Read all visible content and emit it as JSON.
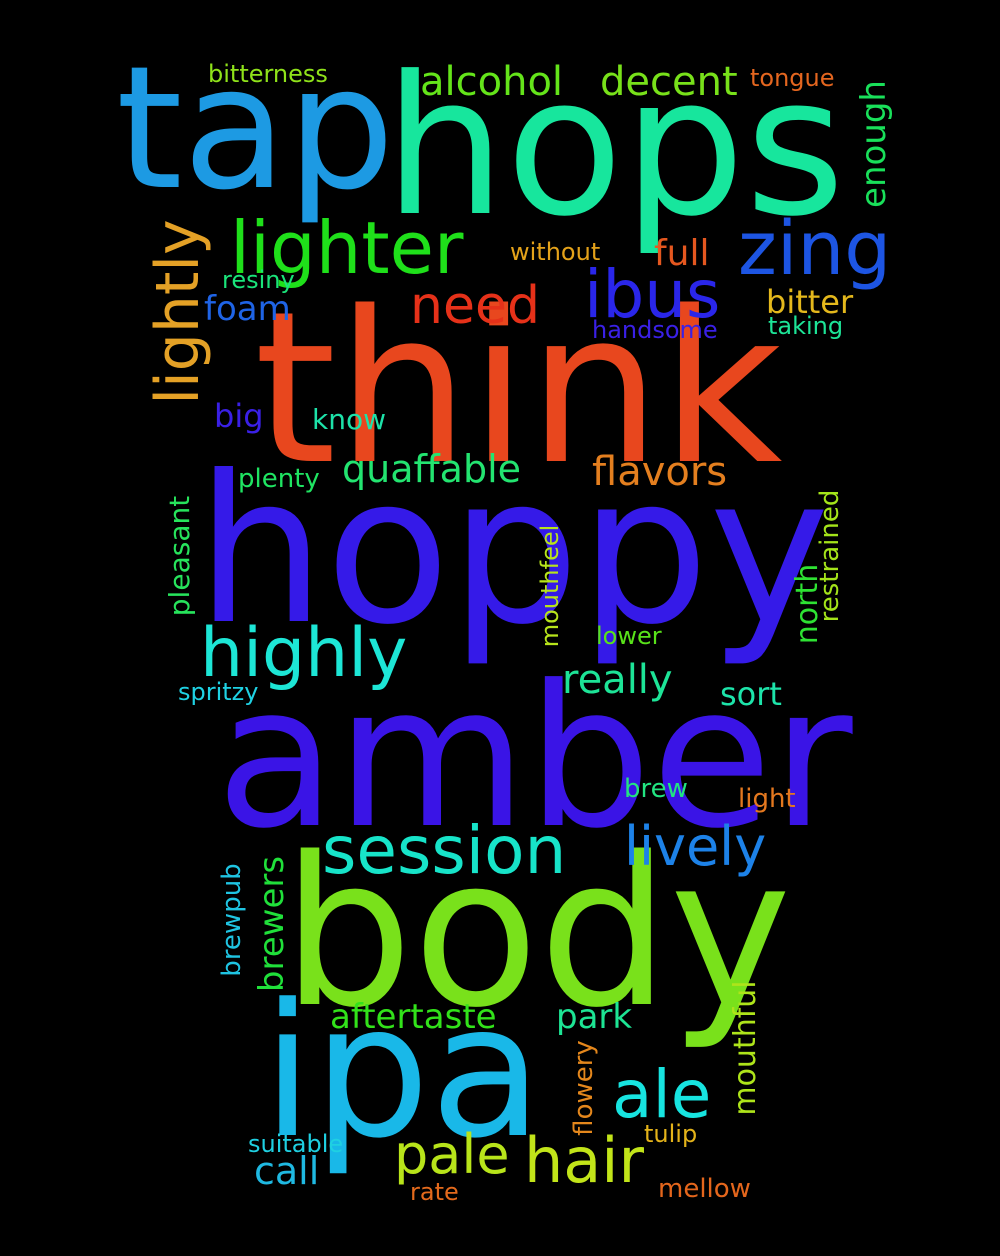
{
  "background": "#000000",
  "words": [
    {
      "text": "think",
      "color": "#e8471e"
    },
    {
      "text": "hoppy",
      "color": "#351ae8"
    },
    {
      "text": "amber",
      "color": "#3a14e6"
    },
    {
      "text": "body",
      "color": "#79e11b"
    },
    {
      "text": "hops",
      "color": "#17e69d"
    },
    {
      "text": "tap",
      "color": "#1d9ae3"
    },
    {
      "text": "ipa",
      "color": "#19b8e8"
    },
    {
      "text": "lighter",
      "color": "#1fe01a"
    },
    {
      "text": "lightly",
      "color": "#e4a126"
    },
    {
      "text": "zing",
      "color": "#1d55e3"
    },
    {
      "text": "ibus",
      "color": "#2a26ea"
    },
    {
      "text": "highly",
      "color": "#1de6d6"
    },
    {
      "text": "session",
      "color": "#17e4c9"
    },
    {
      "text": "ale",
      "color": "#17e4e0"
    },
    {
      "text": "hair",
      "color": "#c2e419"
    },
    {
      "text": "pale",
      "color": "#b8e41a"
    },
    {
      "text": "need",
      "color": "#e63119"
    },
    {
      "text": "lively",
      "color": "#1d82e8"
    },
    {
      "text": "alcohol",
      "color": "#64e41a"
    },
    {
      "text": "decent",
      "color": "#78e11a"
    },
    {
      "text": "quaffable",
      "color": "#23e470"
    },
    {
      "text": "flavors",
      "color": "#e47f1f"
    },
    {
      "text": "really",
      "color": "#1de497"
    },
    {
      "text": "enough",
      "color": "#19e05a"
    },
    {
      "text": "full",
      "color": "#e4571f"
    },
    {
      "text": "foam",
      "color": "#1f64e6"
    },
    {
      "text": "bitter",
      "color": "#e4b81c"
    },
    {
      "text": "aftertaste",
      "color": "#32e21a"
    },
    {
      "text": "park",
      "color": "#1de494"
    },
    {
      "text": "call",
      "color": "#1fb9e2"
    },
    {
      "text": "mouthful",
      "color": "#aee41a"
    },
    {
      "text": "brewers",
      "color": "#20e03a"
    },
    {
      "text": "north",
      "color": "#2ee233"
    },
    {
      "text": "big",
      "color": "#3a20e6"
    },
    {
      "text": "know",
      "color": "#1de2a9"
    },
    {
      "text": "sort",
      "color": "#1de4aa"
    },
    {
      "text": "plenty",
      "color": "#1fe462"
    },
    {
      "text": "pleasant",
      "color": "#27e45c"
    },
    {
      "text": "restrained",
      "color": "#a4e41a"
    },
    {
      "text": "mouthfeel",
      "color": "#b7e41b"
    },
    {
      "text": "bitterness",
      "color": "#8fe21a"
    },
    {
      "text": "tongue",
      "color": "#e4661f"
    },
    {
      "text": "without",
      "color": "#e4a21a"
    },
    {
      "text": "resiny",
      "color": "#1ae47a"
    },
    {
      "text": "handsome",
      "color": "#3a20e6"
    },
    {
      "text": "taking",
      "color": "#1de497"
    },
    {
      "text": "lower",
      "color": "#59e21a"
    },
    {
      "text": "spritzy",
      "color": "#1fd2e4"
    },
    {
      "text": "brew",
      "color": "#22e481"
    },
    {
      "text": "light",
      "color": "#e4781f"
    },
    {
      "text": "brewpub",
      "color": "#1fc4e2"
    },
    {
      "text": "flowery",
      "color": "#e4871c"
    },
    {
      "text": "tulip",
      "color": "#e4b31a"
    },
    {
      "text": "suitable",
      "color": "#1fd0e2"
    },
    {
      "text": "rate",
      "color": "#e46a1c"
    },
    {
      "text": "mellow",
      "color": "#e4661c"
    }
  ]
}
